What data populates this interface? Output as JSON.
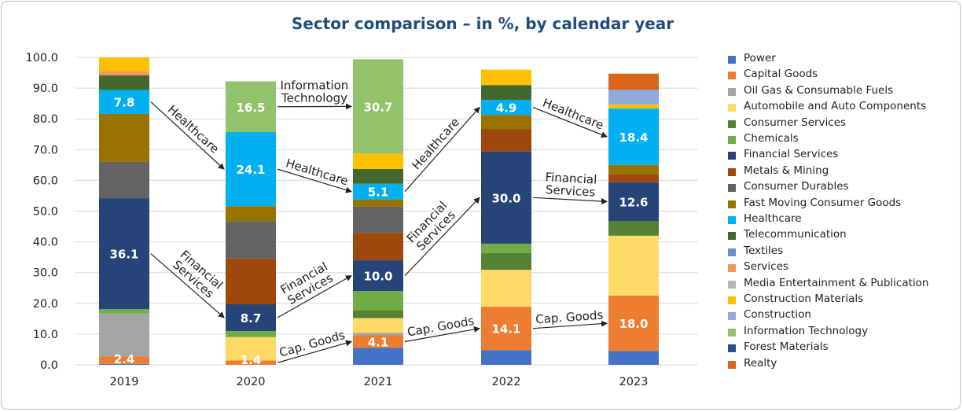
{
  "chart_data": {
    "type": "bar",
    "stacked": true,
    "title": "Sector comparison – in %, by calendar year",
    "categories": [
      "2019",
      "2020",
      "2021",
      "2022",
      "2023"
    ],
    "ylim": [
      0,
      100
    ],
    "yticks": [
      "0.0",
      "10.0",
      "20.0",
      "30.0",
      "40.0",
      "50.0",
      "60.0",
      "70.0",
      "80.0",
      "90.0",
      "100.0"
    ],
    "grid": true,
    "legend_position": "right",
    "series": [
      {
        "name": "Power",
        "color": "#4472c4",
        "values": [
          0.3,
          0,
          5.5,
          4.8,
          4.5
        ]
      },
      {
        "name": "Capital Goods",
        "color": "#ed7d31",
        "values": [
          2.4,
          1.4,
          4.1,
          14.1,
          18.0
        ]
      },
      {
        "name": "Oil Gas & Consumable Fuels",
        "color": "#a5a5a5",
        "values": [
          14.0,
          0,
          0.8,
          0,
          0
        ]
      },
      {
        "name": "Automobile and Auto Components",
        "color": "#ffd966",
        "values": [
          0,
          7.6,
          4.8,
          12.0,
          19.5
        ]
      },
      {
        "name": "Consumer Services",
        "color": "#548235",
        "values": [
          0,
          0,
          2.6,
          5.5,
          4.8
        ]
      },
      {
        "name": "Chemicals",
        "color": "#70ad47",
        "values": [
          1.4,
          2.0,
          6.2,
          3.0,
          0
        ]
      },
      {
        "name": "Financial Services",
        "color": "#264478",
        "values": [
          36.1,
          8.7,
          10.0,
          30.0,
          12.6
        ]
      },
      {
        "name": "Metals & Mining",
        "color": "#9e480e",
        "values": [
          0,
          14.9,
          8.9,
          7.2,
          2.5
        ]
      },
      {
        "name": "Consumer Durables",
        "color": "#636363",
        "values": [
          11.8,
          12.1,
          8.6,
          0,
          0
        ]
      },
      {
        "name": "Fast Moving Consumer Goods",
        "color": "#997300",
        "values": [
          15.6,
          4.9,
          2.3,
          4.7,
          3.1
        ]
      },
      {
        "name": "Healthcare",
        "color": "#00b0f0",
        "values": [
          7.8,
          24.1,
          5.1,
          4.9,
          18.4
        ]
      },
      {
        "name": "Telecommunication",
        "color": "#43682b",
        "values": [
          4.8,
          0,
          4.8,
          4.8,
          0
        ]
      },
      {
        "name": "Textiles",
        "color": "#698ed0",
        "values": [
          0,
          0,
          0,
          0,
          0
        ]
      },
      {
        "name": "Services",
        "color": "#f1975a",
        "values": [
          1.3,
          0,
          0,
          0,
          0
        ]
      },
      {
        "name": "Media Entertainment & Publication",
        "color": "#b7b7b7",
        "values": [
          0,
          0,
          0,
          0,
          0
        ]
      },
      {
        "name": "Construction Materials",
        "color": "#ffc000",
        "values": [
          4.5,
          0,
          5.0,
          5.0,
          1.3
        ]
      },
      {
        "name": "Construction",
        "color": "#8faadc",
        "values": [
          0,
          0,
          0,
          0,
          4.8
        ]
      },
      {
        "name": "Information Technology",
        "color": "#92c36b",
        "values": [
          0,
          16.5,
          30.7,
          0,
          0
        ]
      },
      {
        "name": "Forest Materials",
        "color": "#2e4f8f",
        "values": [
          0,
          0,
          0,
          0,
          0
        ]
      },
      {
        "name": "Realty",
        "color": "#d9651a",
        "values": [
          0,
          0,
          0,
          0,
          5.2
        ]
      }
    ],
    "data_labels": [
      {
        "category": "2019",
        "series": "Capital Goods",
        "text": "2.4"
      },
      {
        "category": "2019",
        "series": "Financial Services",
        "text": "36.1"
      },
      {
        "category": "2019",
        "series": "Healthcare",
        "text": "7.8"
      },
      {
        "category": "2020",
        "series": "Capital Goods",
        "text": "1.4"
      },
      {
        "category": "2020",
        "series": "Financial Services",
        "text": "8.7"
      },
      {
        "category": "2020",
        "series": "Healthcare",
        "text": "24.1"
      },
      {
        "category": "2020",
        "series": "Information Technology",
        "text": "16.5"
      },
      {
        "category": "2021",
        "series": "Capital Goods",
        "text": "4.1"
      },
      {
        "category": "2021",
        "series": "Financial Services",
        "text": "10.0"
      },
      {
        "category": "2021",
        "series": "Healthcare",
        "text": "5.1"
      },
      {
        "category": "2021",
        "series": "Information Technology",
        "text": "30.7"
      },
      {
        "category": "2022",
        "series": "Capital Goods",
        "text": "14.1"
      },
      {
        "category": "2022",
        "series": "Financial Services",
        "text": "30.0"
      },
      {
        "category": "2022",
        "series": "Healthcare",
        "text": "4.9"
      },
      {
        "category": "2023",
        "series": "Capital Goods",
        "text": "18.0"
      },
      {
        "category": "2023",
        "series": "Financial Services",
        "text": "12.6"
      },
      {
        "category": "2023",
        "series": "Healthcare",
        "text": "18.4"
      }
    ],
    "annotations": [
      {
        "text": "Healthcare",
        "from": "2019",
        "to": "2020",
        "series": "Healthcare"
      },
      {
        "text": "Healthcare",
        "from": "2020",
        "to": "2021",
        "series": "Healthcare"
      },
      {
        "text": "Healthcare",
        "from": "2021",
        "to": "2022",
        "series": "Healthcare"
      },
      {
        "text": "Healthcare",
        "from": "2022",
        "to": "2023",
        "series": "Healthcare"
      },
      {
        "text": "Financial Services",
        "from": "2019",
        "to": "2020",
        "series": "Financial Services"
      },
      {
        "text": "Financial Services",
        "from": "2020",
        "to": "2021",
        "series": "Financial Services"
      },
      {
        "text": "Financial Services",
        "from": "2021",
        "to": "2022",
        "series": "Financial Services"
      },
      {
        "text": "Financial Services",
        "from": "2022",
        "to": "2023",
        "series": "Financial Services"
      },
      {
        "text": "Information Technology",
        "from": "2020",
        "to": "2021",
        "series": "Information Technology"
      },
      {
        "text": "Cap. Goods",
        "from": "2020",
        "to": "2021",
        "series": "Capital Goods"
      },
      {
        "text": "Cap. Goods",
        "from": "2021",
        "to": "2022",
        "series": "Capital Goods"
      },
      {
        "text": "Cap. Goods",
        "from": "2022",
        "to": "2023",
        "series": "Capital Goods"
      }
    ]
  }
}
